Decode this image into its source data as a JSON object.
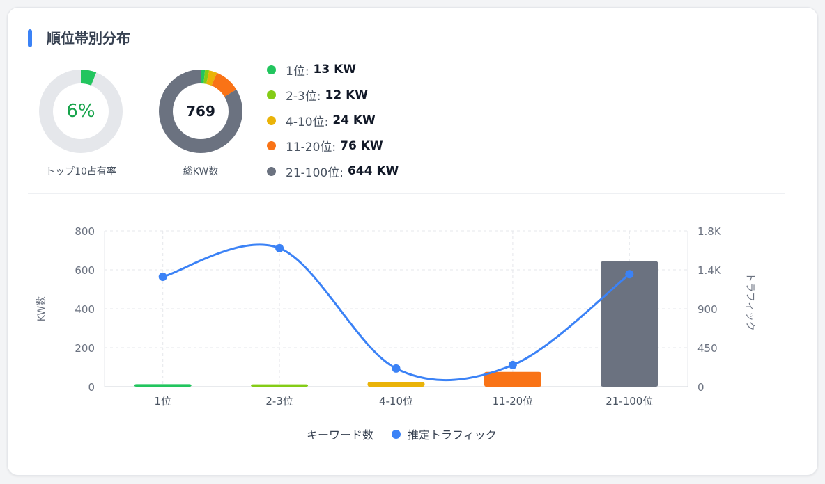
{
  "title": "順位帯別分布",
  "colors": {
    "accent": "#3b82f6",
    "rank1": "#22c55e",
    "rank2_3": "#84cc16",
    "rank4_10": "#eab308",
    "rank11_20": "#f97316",
    "rank21_100": "#6b7280",
    "track": "#e5e7eb"
  },
  "top10": {
    "value": "6%",
    "fraction": 0.06,
    "caption": "トップ10占有率"
  },
  "total": {
    "value": "769",
    "caption": "総KW数"
  },
  "legend": [
    {
      "label": "1位:",
      "value": "13 KW",
      "color": "#22c55e"
    },
    {
      "label": "2-3位:",
      "value": "12 KW",
      "color": "#84cc16"
    },
    {
      "label": "4-10位:",
      "value": "24 KW",
      "color": "#eab308"
    },
    {
      "label": "11-20位:",
      "value": "76 KW",
      "color": "#f97316"
    },
    {
      "label": "21-100位:",
      "value": "644 KW",
      "color": "#6b7280"
    }
  ],
  "chart_data": {
    "type": "bar",
    "categories": [
      "1位",
      "2-3位",
      "4-10位",
      "11-20位",
      "21-100位"
    ],
    "series": [
      {
        "name": "キーワード数",
        "type": "bar",
        "axis": "left",
        "values": [
          13,
          12,
          24,
          76,
          644
        ]
      },
      {
        "name": "推定トラフィック",
        "type": "line",
        "axis": "right",
        "values": [
          1270,
          1600,
          210,
          250,
          1300
        ]
      }
    ],
    "ylabel": "KW数",
    "y2label": "トラフィック",
    "ylim": [
      0,
      800
    ],
    "yticks": [
      "0",
      "200",
      "400",
      "600",
      "800"
    ],
    "y2lim": [
      0,
      1800
    ],
    "y2ticks": [
      "0",
      "450",
      "900",
      "1.4K",
      "1.8K"
    ],
    "grid": true,
    "legend_position": "bottom"
  }
}
